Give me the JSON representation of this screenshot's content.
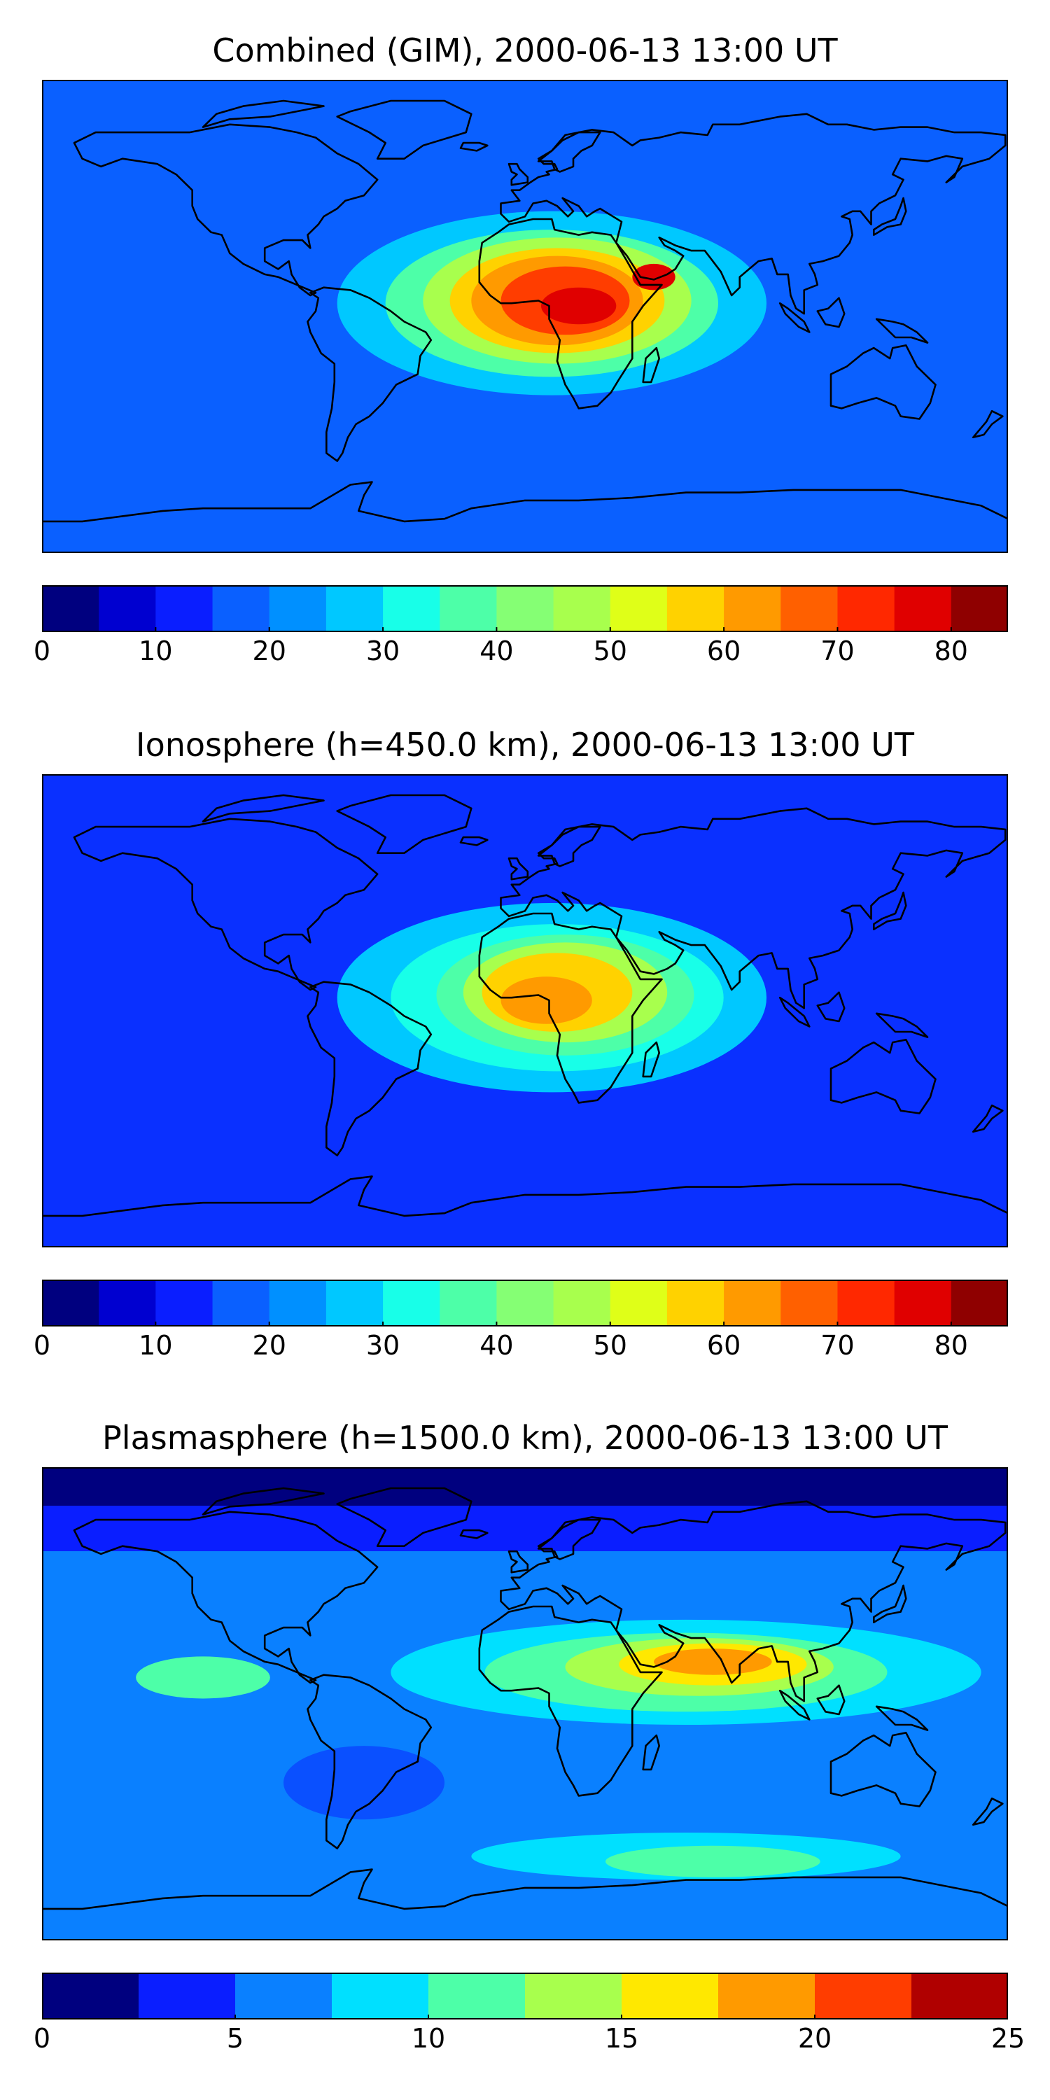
{
  "panels": [
    {
      "title": "Combined (GIM), 2000-06-13 13:00 UT",
      "colorbar": {
        "min": 0,
        "max": 85,
        "step": 5,
        "ticks": [
          "0",
          "10",
          "20",
          "30",
          "40",
          "50",
          "60",
          "70",
          "80"
        ],
        "tick_values": [
          0,
          10,
          20,
          30,
          40,
          50,
          60,
          70,
          80
        ]
      },
      "blobs": [
        {
          "lon": 10,
          "lat": 5,
          "rx": 80,
          "ry": 35,
          "color": "#00c8ff"
        },
        {
          "lon": 10,
          "lat": 5,
          "rx": 62,
          "ry": 28,
          "color": "#4dffa8"
        },
        {
          "lon": 12,
          "lat": 6,
          "rx": 50,
          "ry": 24,
          "color": "#a8ff4d"
        },
        {
          "lon": 12,
          "lat": 6,
          "rx": 40,
          "ry": 20,
          "color": "#ffd200"
        },
        {
          "lon": 12,
          "lat": 6,
          "rx": 32,
          "ry": 17,
          "color": "#ff9a00"
        },
        {
          "lon": 15,
          "lat": 6,
          "rx": 24,
          "ry": 13,
          "color": "#ff3d00"
        },
        {
          "lon": 20,
          "lat": 4,
          "rx": 14,
          "ry": 7,
          "color": "#e00000"
        },
        {
          "lon": 48,
          "lat": 15,
          "rx": 8,
          "ry": 5,
          "color": "#e00000"
        }
      ]
    },
    {
      "title": "Ionosphere  (h=450.0 km), 2000-06-13 13:00 UT",
      "colorbar": {
        "min": 0,
        "max": 85,
        "step": 5,
        "ticks": [
          "0",
          "10",
          "20",
          "30",
          "40",
          "50",
          "60",
          "70",
          "80"
        ],
        "tick_values": [
          0,
          10,
          20,
          30,
          40,
          50,
          60,
          70,
          80
        ]
      },
      "blobs": [
        {
          "lon": 10,
          "lat": 5,
          "rx": 80,
          "ry": 36,
          "color": "#00c8ff"
        },
        {
          "lon": 12,
          "lat": 5,
          "rx": 62,
          "ry": 28,
          "color": "#18ffe8"
        },
        {
          "lon": 15,
          "lat": 6,
          "rx": 48,
          "ry": 23,
          "color": "#4dffa8"
        },
        {
          "lon": 15,
          "lat": 7,
          "rx": 38,
          "ry": 19,
          "color": "#a8ff4d"
        },
        {
          "lon": 12,
          "lat": 7,
          "rx": 28,
          "ry": 15,
          "color": "#ffd200"
        },
        {
          "lon": 8,
          "lat": 4,
          "rx": 17,
          "ry": 9,
          "color": "#ff9a00"
        }
      ]
    },
    {
      "title": "Plasmasphere (h=1500.0 km), 2000-06-13 13:00 UT",
      "colorbar": {
        "min": 0,
        "max": 25,
        "step": 2.5,
        "ticks": [
          "0",
          "5",
          "10",
          "15",
          "20",
          "25"
        ],
        "tick_values": [
          0,
          5,
          10,
          15,
          20,
          25
        ]
      },
      "blobs": [
        {
          "lon": 60,
          "lat": 12,
          "rx": 110,
          "ry": 20,
          "color": "#00e0ff"
        },
        {
          "lon": 60,
          "lat": 12,
          "rx": 75,
          "ry": 15,
          "color": "#4dffa8"
        },
        {
          "lon": 65,
          "lat": 14,
          "rx": 50,
          "ry": 11,
          "color": "#a8ff4d"
        },
        {
          "lon": 70,
          "lat": 15,
          "rx": 35,
          "ry": 8,
          "color": "#ffe800"
        },
        {
          "lon": 70,
          "lat": 16,
          "rx": 22,
          "ry": 5,
          "color": "#ff9a00"
        },
        {
          "lon": -120,
          "lat": 10,
          "rx": 25,
          "ry": 8,
          "color": "#4dffa8"
        },
        {
          "lon": 60,
          "lat": -58,
          "rx": 80,
          "ry": 9,
          "color": "#00e0ff"
        },
        {
          "lon": 70,
          "lat": -60,
          "rx": 40,
          "ry": 6,
          "color": "#4dffa8"
        },
        {
          "lon": -60,
          "lat": -30,
          "rx": 30,
          "ry": 14,
          "color": "#0a50ff"
        }
      ]
    }
  ],
  "colors": {
    "jet17": [
      "#00007f",
      "#0000d0",
      "#0a1eff",
      "#0a60ff",
      "#0090ff",
      "#00c8ff",
      "#18ffe8",
      "#4dffa8",
      "#85ff74",
      "#a8ff4d",
      "#dfff18",
      "#ffd200",
      "#ff9a00",
      "#ff6000",
      "#ff2800",
      "#e00000",
      "#8f0000"
    ],
    "jet10": [
      "#00007f",
      "#0a1eff",
      "#0a80ff",
      "#00e0ff",
      "#4dffa8",
      "#a8ff4d",
      "#ffe800",
      "#ff9a00",
      "#ff3d00",
      "#b00000"
    ],
    "coast": "#000000"
  }
}
